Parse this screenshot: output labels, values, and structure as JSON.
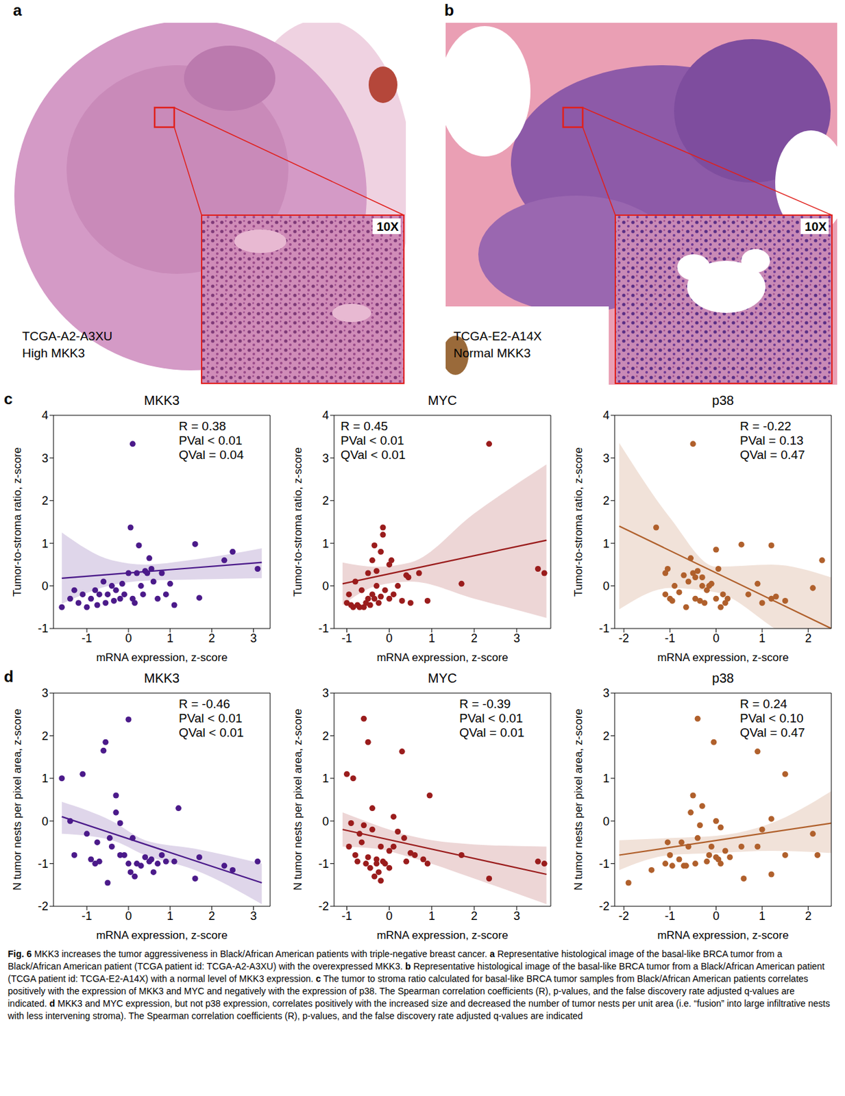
{
  "images": [
    {
      "panel": "a",
      "sample": "TCGA-A2-A3XU",
      "label": "High MKK3",
      "magnification": "10X"
    },
    {
      "panel": "b",
      "sample": "TCGA-E2-A14X",
      "label": "Normal MKK3",
      "magnification": "10X"
    }
  ],
  "chart_data": [
    {
      "panel": "c",
      "type": "scatter",
      "title": "MKK3",
      "x_label": "mRNA expression, z-score",
      "y_label": "Tumor-to-stroma ratio, z-score",
      "color": "#4b1a8a",
      "x": [
        -1.6,
        -1.4,
        -1.3,
        -1.2,
        -1.1,
        -1.0,
        -0.9,
        -0.8,
        -0.75,
        -0.7,
        -0.6,
        -0.55,
        -0.5,
        -0.4,
        -0.35,
        -0.3,
        -0.2,
        -0.15,
        -0.1,
        0.0,
        0.05,
        0.1,
        0.1,
        0.15,
        0.2,
        0.25,
        0.3,
        0.35,
        0.4,
        0.45,
        0.5,
        0.55,
        0.6,
        0.7,
        0.8,
        0.9,
        1.0,
        1.1,
        1.6,
        1.7,
        2.3,
        2.5,
        3.1
      ],
      "values": [
        -0.5,
        -0.3,
        -0.1,
        -0.4,
        -0.2,
        -0.5,
        -0.3,
        -0.1,
        -0.45,
        -0.2,
        0.1,
        -0.4,
        -0.2,
        0.0,
        -0.35,
        -0.1,
        -0.3,
        0.05,
        -0.2,
        0.3,
        1.37,
        3.33,
        -0.3,
        -0.4,
        0.3,
        0.95,
        0.0,
        -0.2,
        0.35,
        0.3,
        0.65,
        0.4,
        0.1,
        -0.3,
        0.3,
        -0.2,
        0.05,
        -0.45,
        0.98,
        -0.28,
        0.6,
        0.8,
        0.4
      ],
      "fit": {
        "x": [
          -1.6,
          3.2
        ],
        "values": [
          0.18,
          0.55
        ]
      },
      "band": {
        "x": [
          -1.6,
          -0.4,
          0.4,
          1.6,
          3.2
        ],
        "lower": [
          -0.42,
          0.02,
          0.12,
          0.15,
          0.18
        ],
        "upper": [
          1.25,
          0.6,
          0.5,
          0.62,
          0.88
        ]
      },
      "annotations": [
        "R = 0.38",
        "PVal < 0.01",
        "QVal = 0.04"
      ],
      "xlim": [
        -1.8,
        3.4
      ],
      "ylim": [
        -1,
        4
      ],
      "xticks": [
        -1,
        0,
        1,
        2,
        3
      ],
      "yticks": [
        -1,
        0,
        1,
        2,
        3,
        4
      ]
    },
    {
      "type": "scatter",
      "title": "MYC",
      "x_label": "mRNA expression, z-score",
      "y_label": "Tumor-to-stroma ratio, z-score",
      "color": "#9a1c1c",
      "x": [
        -1.0,
        -0.95,
        -0.9,
        -0.85,
        -0.8,
        -0.75,
        -0.7,
        -0.65,
        -0.6,
        -0.55,
        -0.5,
        -0.5,
        -0.45,
        -0.4,
        -0.4,
        -0.35,
        -0.35,
        -0.3,
        -0.3,
        -0.25,
        -0.2,
        -0.2,
        -0.15,
        -0.15,
        -0.1,
        0.0,
        0.05,
        0.0,
        0.1,
        0.2,
        0.3,
        0.4,
        0.45,
        0.5,
        0.7,
        0.9,
        1.7,
        2.35,
        3.5,
        3.65
      ],
      "values": [
        -0.4,
        -0.2,
        -0.45,
        -0.5,
        0.1,
        -0.45,
        -0.5,
        -0.1,
        -0.5,
        -0.4,
        -0.3,
        0.3,
        -0.45,
        0.6,
        -0.2,
        0.95,
        -0.3,
        0.0,
        0.35,
        -0.4,
        0.8,
        -0.25,
        1.37,
        1.2,
        -0.1,
        0.5,
        0.6,
        -0.3,
        -0.2,
        0.0,
        -0.35,
        0.25,
        0.2,
        -0.4,
        0.3,
        -0.35,
        0.05,
        3.33,
        0.4,
        0.3
      ],
      "fit": {
        "x": [
          -1.1,
          3.7
        ],
        "values": [
          0.05,
          1.07
        ]
      },
      "band": {
        "x": [
          -1.1,
          -0.3,
          0.5,
          2.0,
          3.7
        ],
        "lower": [
          -0.45,
          0.0,
          0.1,
          -0.3,
          -0.75
        ],
        "upper": [
          0.55,
          0.45,
          0.55,
          1.7,
          2.85
        ]
      },
      "annotations": [
        "R = 0.45",
        "PVal < 0.01",
        "QVal < 0.01"
      ],
      "xlim": [
        -1.3,
        3.8
      ],
      "ylim": [
        -1,
        4
      ],
      "xticks": [
        -1,
        0,
        1,
        2,
        3
      ],
      "yticks": [
        -1,
        0,
        1,
        2,
        3,
        4
      ]
    },
    {
      "type": "scatter",
      "title": "p38",
      "x_label": "mRNA expression, z-score",
      "y_label": "Tumor-to-stroma ratio, z-score",
      "color": "#b0602c",
      "x": [
        -1.3,
        -1.1,
        -1.1,
        -1.05,
        -1.0,
        -0.95,
        -0.9,
        -0.8,
        -0.7,
        -0.65,
        -0.6,
        -0.55,
        -0.5,
        -0.5,
        -0.45,
        -0.45,
        -0.4,
        -0.35,
        -0.3,
        -0.3,
        -0.25,
        -0.2,
        -0.15,
        -0.1,
        0.0,
        0.0,
        0.05,
        0.1,
        0.15,
        0.2,
        0.25,
        0.55,
        0.7,
        0.9,
        1.0,
        1.2,
        1.2,
        1.3,
        1.5,
        2.1,
        2.3
      ],
      "values": [
        1.37,
        0.3,
        -0.2,
        0.4,
        -0.3,
        -0.35,
        0.0,
        -0.15,
        0.25,
        -0.5,
        0.1,
        0.65,
        3.33,
        0.3,
        0.2,
        -0.3,
        0.35,
        -0.35,
        0.2,
        0.0,
        -0.4,
        -0.1,
        0.0,
        0.05,
        -0.3,
        0.85,
        0.4,
        -0.5,
        -0.2,
        -0.4,
        -0.3,
        0.97,
        -0.2,
        0.05,
        -0.4,
        0.95,
        -0.3,
        -0.25,
        -0.35,
        -0.05,
        0.6
      ],
      "fit": {
        "x": [
          -2.1,
          2.5
        ],
        "values": [
          1.4,
          -1.0
        ]
      },
      "band": {
        "x": [
          -2.1,
          -1.0,
          0.0,
          1.2,
          2.5
        ],
        "lower": [
          -0.55,
          -0.05,
          -0.15,
          -0.95,
          -2.0
        ],
        "upper": [
          3.35,
          1.6,
          0.45,
          0.5,
          0.2
        ]
      },
      "annotations": [
        "R = -0.22",
        "PVal = 0.13",
        "QVal = 0.47"
      ],
      "xlim": [
        -2.2,
        2.5
      ],
      "ylim": [
        -1,
        4
      ],
      "xticks": [
        -2,
        -1,
        0,
        1,
        2
      ],
      "yticks": [
        -1,
        0,
        1,
        2,
        3,
        4
      ]
    },
    {
      "panel": "d",
      "type": "scatter",
      "title": "MKK3",
      "x_label": "mRNA expression, z-score",
      "y_label": "N tumor nests per pixel area, z-score",
      "color": "#4b1a8a",
      "x": [
        -1.6,
        -1.4,
        -1.3,
        -1.1,
        -1.0,
        -0.9,
        -0.8,
        -0.75,
        -0.7,
        -0.6,
        -0.55,
        -0.5,
        -0.45,
        -0.4,
        -0.3,
        -0.3,
        -0.2,
        -0.2,
        -0.1,
        0.0,
        0.0,
        0.05,
        0.1,
        0.15,
        0.2,
        0.3,
        0.4,
        0.5,
        0.55,
        0.6,
        0.7,
        0.8,
        0.9,
        1.1,
        1.2,
        1.6,
        1.7,
        2.3,
        2.5,
        3.1
      ],
      "values": [
        1.0,
        0.0,
        -0.8,
        1.1,
        -0.3,
        -0.9,
        -1.0,
        -0.5,
        -0.95,
        1.65,
        1.85,
        -1.45,
        -0.4,
        -0.6,
        0.2,
        0.6,
        -0.05,
        -0.8,
        -0.8,
        2.38,
        -1.0,
        -1.2,
        -0.4,
        -1.3,
        -1.0,
        -1.05,
        -0.85,
        -0.95,
        -0.9,
        -1.2,
        -1.0,
        -0.8,
        -0.95,
        -0.95,
        0.3,
        -1.35,
        -0.85,
        -1.05,
        -1.15,
        -0.95
      ],
      "fit": {
        "x": [
          -1.6,
          3.2
        ],
        "values": [
          0.1,
          -1.45
        ]
      },
      "band": {
        "x": [
          -1.6,
          -0.4,
          0.4,
          1.6,
          3.2
        ],
        "lower": [
          -0.3,
          -0.45,
          -0.8,
          -1.15,
          -1.95
        ],
        "upper": [
          0.45,
          0.0,
          -0.45,
          -0.65,
          -1.0
        ]
      },
      "annotations": [
        "R = -0.46",
        "PVal < 0.01",
        "QVal < 0.01"
      ],
      "xlim": [
        -1.8,
        3.4
      ],
      "ylim": [
        -2,
        3
      ],
      "xticks": [
        -1,
        0,
        1,
        2,
        3
      ],
      "yticks": [
        -2,
        -1,
        0,
        1,
        2,
        3
      ]
    },
    {
      "type": "scatter",
      "title": "MYC",
      "x_label": "mRNA expression, z-score",
      "y_label": "N tumor nests per pixel area, z-score",
      "color": "#9a1c1c",
      "x": [
        -1.0,
        -0.95,
        -0.9,
        -0.85,
        -0.8,
        -0.75,
        -0.7,
        -0.65,
        -0.6,
        -0.6,
        -0.55,
        -0.5,
        -0.5,
        -0.45,
        -0.4,
        -0.4,
        -0.35,
        -0.3,
        -0.3,
        -0.25,
        -0.2,
        -0.2,
        -0.15,
        -0.1,
        0.0,
        0.0,
        0.1,
        0.1,
        0.2,
        0.3,
        0.35,
        0.4,
        0.5,
        0.6,
        0.8,
        0.9,
        0.95,
        1.7,
        2.35,
        3.5,
        3.65
      ],
      "values": [
        1.1,
        -0.6,
        -0.05,
        1.0,
        -0.8,
        -0.95,
        -0.3,
        -0.5,
        2.4,
        -0.1,
        -1.0,
        1.85,
        -0.85,
        -1.1,
        -0.2,
        0.3,
        -1.3,
        -1.0,
        -0.9,
        -1.2,
        -0.6,
        -1.4,
        -0.95,
        -1.0,
        -1.1,
        -0.7,
        0.1,
        -0.6,
        -0.25,
        1.63,
        -0.4,
        -0.95,
        -0.75,
        -0.8,
        -0.9,
        -1.0,
        0.6,
        -0.8,
        -1.35,
        -0.95,
        -1.0
      ],
      "fit": {
        "x": [
          -1.1,
          3.7
        ],
        "values": [
          -0.2,
          -1.25
        ]
      },
      "band": {
        "x": [
          -1.1,
          -0.3,
          0.5,
          2.0,
          3.7
        ],
        "lower": [
          -0.6,
          -0.65,
          -0.85,
          -1.35,
          -1.95
        ],
        "upper": [
          0.2,
          -0.1,
          -0.35,
          -0.55,
          -0.6
        ]
      },
      "annotations": [
        "R = -0.39",
        "PVal < 0.01",
        "QVal = 0.01"
      ],
      "xlim": [
        -1.3,
        3.8
      ],
      "ylim": [
        -2,
        3
      ],
      "xticks": [
        -1,
        0,
        1,
        2,
        3
      ],
      "yticks": [
        -2,
        -1,
        0,
        1,
        2,
        3
      ]
    },
    {
      "type": "scatter",
      "title": "p38",
      "x_label": "mRNA expression, z-score",
      "y_label": "N tumor nests per pixel area, z-score",
      "color": "#b0602c",
      "x": [
        -1.9,
        -1.4,
        -1.1,
        -1.05,
        -1.0,
        -0.95,
        -0.8,
        -0.75,
        -0.7,
        -0.65,
        -0.6,
        -0.55,
        -0.5,
        -0.45,
        -0.4,
        -0.4,
        -0.35,
        -0.3,
        -0.2,
        -0.15,
        -0.1,
        -0.05,
        0.0,
        0.0,
        0.05,
        0.1,
        0.1,
        0.2,
        0.3,
        0.55,
        0.6,
        0.9,
        0.9,
        1.0,
        1.2,
        1.2,
        1.5,
        1.5,
        2.1,
        2.2
      ],
      "values": [
        -1.45,
        -1.15,
        -1.0,
        -0.5,
        -0.8,
        -1.05,
        -0.9,
        -0.5,
        -1.05,
        -1.05,
        -0.6,
        0.2,
        0.6,
        -1.0,
        2.4,
        -0.4,
        -0.1,
        0.35,
        -0.95,
        -0.8,
        -0.6,
        1.85,
        0.0,
        -0.85,
        -0.9,
        -0.15,
        -1.0,
        -0.7,
        -0.85,
        -0.6,
        -1.35,
        -0.6,
        1.63,
        -0.2,
        -1.25,
        0.05,
        1.1,
        -0.8,
        -0.3,
        -0.8
      ],
      "fit": {
        "x": [
          -2.1,
          2.5
        ],
        "values": [
          -0.8,
          -0.05
        ]
      },
      "band": {
        "x": [
          -2.1,
          -1.0,
          0.0,
          1.2,
          2.5
        ],
        "lower": [
          -1.15,
          -0.8,
          -0.75,
          -0.7,
          -0.75
        ],
        "upper": [
          -0.45,
          -0.4,
          -0.35,
          -0.05,
          0.7
        ]
      },
      "annotations": [
        "R = 0.24",
        "PVal < 0.10",
        "QVal = 0.47"
      ],
      "xlim": [
        -2.2,
        2.5
      ],
      "ylim": [
        -2,
        3
      ],
      "xticks": [
        -2,
        -1,
        0,
        1,
        2
      ],
      "yticks": [
        -2,
        -1,
        0,
        1,
        2,
        3
      ]
    }
  ],
  "caption": {
    "figure_label": "Fig. 6",
    "title": "MKK3 increases the tumor aggressiveness in Black/African American patients with triple-negative breast cancer.",
    "panels": [
      {
        "label": "a",
        "text": "Representative histological image of the basal-like BRCA tumor from a Black/African American patient (TCGA patient id: TCGA-A2-A3XU) with the overexpressed MKK3."
      },
      {
        "label": "b",
        "text": "Representative histological image of the basal-like BRCA tumor from a Black/African American patient (TCGA patient id: TCGA-E2-A14X) with a normal level of MKK3 expression."
      },
      {
        "label": "c",
        "text": "The tumor to stroma ratio calculated for basal-like BRCA tumor samples from Black/African American patients correlates positively with the expression of MKK3 and MYC and negatively with the expression of p38. The Spearman correlation coefficients (R), p-values, and the false discovery rate adjusted q-values are indicated."
      },
      {
        "label": "d",
        "text": "MKK3 and MYC expression, but not p38 expression, correlates positively with the increased size and decreased the number of tumor nests per unit area (i.e. “fusion” into large infiltrative nests with less intervening stroma). The Spearman correlation coefficients (R), p-values, and the false discovery rate adjusted q-values are indicated"
      }
    ]
  }
}
